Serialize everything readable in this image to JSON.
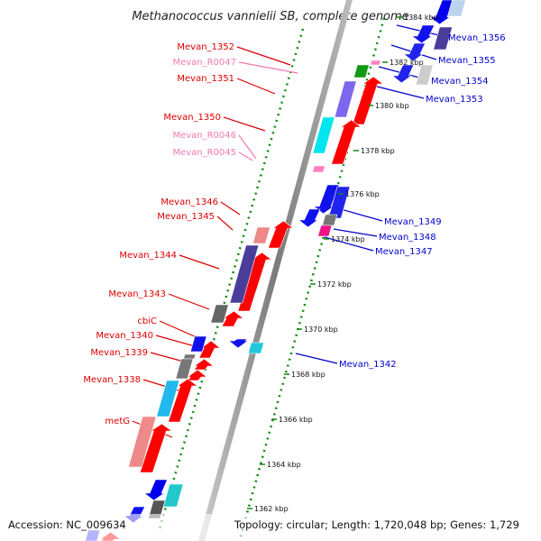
{
  "title": "Methanococcus vannielii SB, complete genome",
  "footer": {
    "accession": "Accession: NC_009634",
    "topology": "Topology: circular; Length: 1,720,048 bp; Genes: 1,729"
  },
  "colors": {
    "forward_label": "#dd0000",
    "reverse_label": "#0000cc",
    "rna_label": "#f07ab0",
    "axis_dots": "#118811",
    "backbone": "#999999"
  },
  "ticks": [
    "1362 kbp",
    "1364 kbp",
    "1366 kbp",
    "1368 kbp",
    "1370 kbp",
    "1372 kbp",
    "1374 kbp",
    "1376 kbp",
    "1378 kbp",
    "1380 kbp",
    "1382 kbp",
    "1384 kbp"
  ],
  "forward_labels": [
    "Mevan_1352",
    "Mevan_R0047",
    "Mevan_1351",
    "Mevan_1350",
    "Mevan_R0046",
    "Mevan_R0045",
    "Mevan_1346",
    "Mevan_1345",
    "Mevan_1344",
    "Mevan_1343",
    "cbiC",
    "Mevan_1340",
    "Mevan_1339",
    "Mevan_1338",
    "metG"
  ],
  "reverse_labels": [
    "Mevan_1356",
    "Mevan_1355",
    "Mevan_1354",
    "Mevan_1353",
    "Mevan_1349",
    "Mevan_1348",
    "Mevan_1347",
    "Mevan_1342"
  ]
}
